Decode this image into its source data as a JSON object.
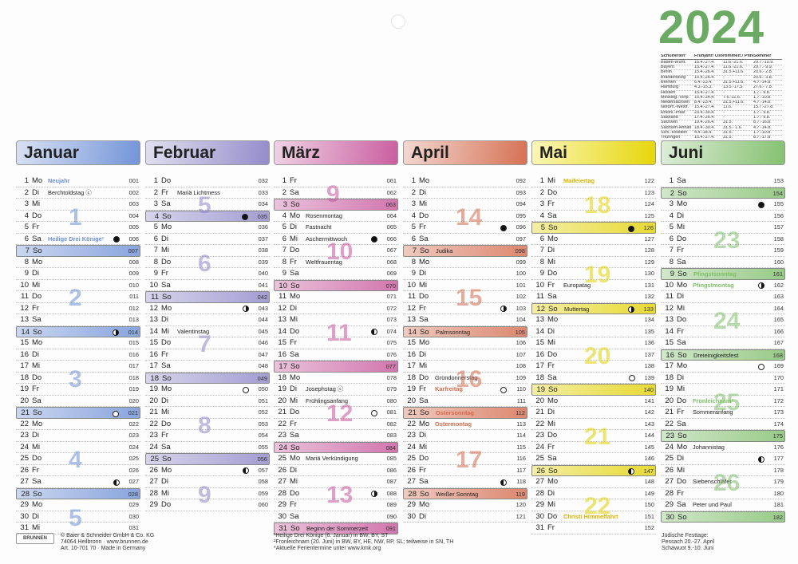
{
  "year": "2024",
  "holidays_table": {
    "header": [
      "Schulferien¹",
      "Frühjahr/ Ostern",
      "Himmelf./ Pfingsten",
      "Sommer"
    ],
    "rows": [
      [
        "Baden-Württ.",
        "15.4.-27.4.",
        "11.6.-21.6.",
        "29.7.-10.9."
      ],
      [
        "Bayern",
        "15.4.-27.4.",
        "11.6.-21.6.",
        "29.7.- 9.9."
      ],
      [
        "Berlin",
        "15.4.-26.4.",
        "31.5.+11.6.",
        "20.6.- 2.8."
      ],
      [
        "Brandenburg",
        "15.4.-26.4.",
        "-",
        "20.6.- 3.8."
      ],
      [
        "Bremen",
        "6.4.-23.4.",
        "31.5.+11.6.",
        "4.7.-14.8."
      ],
      [
        "Hamburg",
        "4.3.-15.3.",
        "13.5.-17.5.",
        "27.6.- 7.8."
      ],
      [
        "Hessen",
        "15.4.-27.4.",
        "-",
        "1.7.- 9.8."
      ],
      [
        "Mecklbg.-Vorp.",
        "15.4.-24.4.",
        "7.6.-11.6.",
        "1.7.-10.8."
      ],
      [
        "Niedersachsen",
        "8.4.-23.4.",
        "31.5.+11.6.",
        "4.7.-14.8."
      ],
      [
        "Nordrh.-Westf.",
        "15.4.-27.4.",
        "11.6.",
        "15.7.-27.8."
      ],
      [
        "Rheinl.-Pfalz",
        "23.4.-30.4.",
        "-",
        "1.7.- 9.8."
      ],
      [
        "Saarland",
        "17.4.-26.4.",
        "-",
        "1.7.- 9.8."
      ],
      [
        "Sachsen",
        "19.4.-26.4.",
        "31.5.",
        "8.7.-16.8."
      ],
      [
        "Sachsen-Anhalt",
        "18.4.-30.4.",
        "31.5.- 1.6.",
        "4.7.-14.8."
      ],
      [
        "Schl.-Holstein",
        "4.4.-18.4.",
        "31.5.",
        "1.7.-10.8."
      ],
      [
        "Thüringen",
        "15.4.-27.4.",
        "31.5.",
        "8.7.-17.8."
      ]
    ]
  },
  "months": [
    {
      "name": "Januar",
      "color": "#6c8fd6",
      "start": 1,
      "len": 31,
      "kw1": 1,
      "hol": {
        "1": [
          "Neujahr",
          "c"
        ],
        "2": [
          "Berchtoldstag ⓒ",
          "b"
        ],
        "6": [
          "Heilige Drei Könige¹",
          "c"
        ]
      },
      "moon": {
        "4": "",
        "6": "new",
        "14": "fq",
        "21": "full",
        "27": "lq"
      }
    },
    {
      "name": "Februar",
      "color": "#8e86c8",
      "start": 4,
      "len": 29,
      "kw1": 5,
      "hol": {
        "2": [
          "Mariä Lichtmess",
          "b"
        ],
        "14": [
          "Valentinstag",
          "b"
        ]
      },
      "moon": {
        "4": "new",
        "12": "fq",
        "19": "full",
        "26": "lq"
      }
    },
    {
      "name": "März",
      "color": "#c7559b",
      "start": 5,
      "len": 31,
      "kw1": 9,
      "hol": {
        "4": [
          "Rosenmontag",
          "b"
        ],
        "5": [
          "Fastnacht",
          "b"
        ],
        "6": [
          "Aschermittwoch",
          "b"
        ],
        "8": [
          "Weltfrauentag",
          "b"
        ],
        "19": [
          "Josephstag ⓒ",
          "b"
        ],
        "20": [
          "Frühlingsanfang",
          "b"
        ],
        "25": [
          "Mariä Verkündigung",
          "b"
        ],
        "31": [
          "Beginn der Sommerzeit",
          "b"
        ]
      },
      "moon": {
        "6": "new",
        "14": "lq",
        "21": "full",
        "28": "fq"
      }
    },
    {
      "name": "April",
      "color": "#d46a4c",
      "start": 1,
      "len": 30,
      "kw1": 14,
      "hol": {
        "7": [
          "Judika",
          "b"
        ],
        "14": [
          "Palmsonntag",
          "b"
        ],
        "18": [
          "Gründonnerstag",
          "b"
        ],
        "19": [
          "Karfreitag",
          "c"
        ],
        "21": [
          "Ostersonntag",
          "c"
        ],
        "22": [
          "Ostermontag",
          "c"
        ],
        "28": [
          "Weißer Sonntag",
          "b"
        ]
      },
      "moon": {
        "5": "new",
        "12": "fq",
        "19": "full",
        "27": "lq"
      }
    },
    {
      "name": "Mai",
      "color": "#e2d100",
      "start": 3,
      "len": 31,
      "kw1": 18,
      "hol": {
        "1": [
          "Maifeiertag",
          "c"
        ],
        "10": [
          "Europatag",
          "b"
        ],
        "12": [
          "Muttertag",
          "b"
        ],
        "30": [
          "Christi Himmelfahrt",
          "c"
        ]
      },
      "moon": {
        "5": "new",
        "12": "fq",
        "18": "full",
        "26": "lq"
      }
    },
    {
      "name": "Juni",
      "color": "#7fbe6a",
      "start": 6,
      "len": 30,
      "kw1": 22,
      "hol": {
        "9": [
          "Pfingstsonntag",
          "c"
        ],
        "10": [
          "Pfingstmontag",
          "c"
        ],
        "16": [
          "Dreieinigkeitsfest",
          "b"
        ],
        "20": [
          "Fronleichnam²",
          "c"
        ],
        "21": [
          "Sommeranfang",
          "b"
        ],
        "24": [
          "Johannistag",
          "b"
        ],
        "27": [
          "Siebenschläfer",
          "b"
        ],
        "29": [
          "Peter und Paul",
          "b"
        ]
      },
      "moon": {
        "3": "new",
        "10": "fq",
        "17": "full",
        "25": "lq"
      }
    }
  ],
  "weekdays": [
    "Mo",
    "Di",
    "Mi",
    "Do",
    "Fr",
    "Sa",
    "So"
  ],
  "footer": {
    "brand": "BRUNNEN",
    "company": [
      "© Baier & Schneider GmbH & Co. KG",
      "74064 Heilbronn · www.brunnen.de",
      "Art. 10-701 70 · Made in Germany"
    ],
    "notes": [
      "¹Heilige Drei Könige (6. Januar) in BW, BY, ST",
      "²Fronleichnam (20. Juni) in BW, BY, HE, NW, RP, SL; teilweise in SN, TH",
      "*Aktuelle Ferientermine unter www.kmk.org"
    ],
    "jewish": [
      "Jüdische Festtage:",
      "Pessach 20.-27. April",
      "Schawuot 9.-10. Juni"
    ]
  },
  "colors": {
    "holiday": "#6c8fd6"
  }
}
